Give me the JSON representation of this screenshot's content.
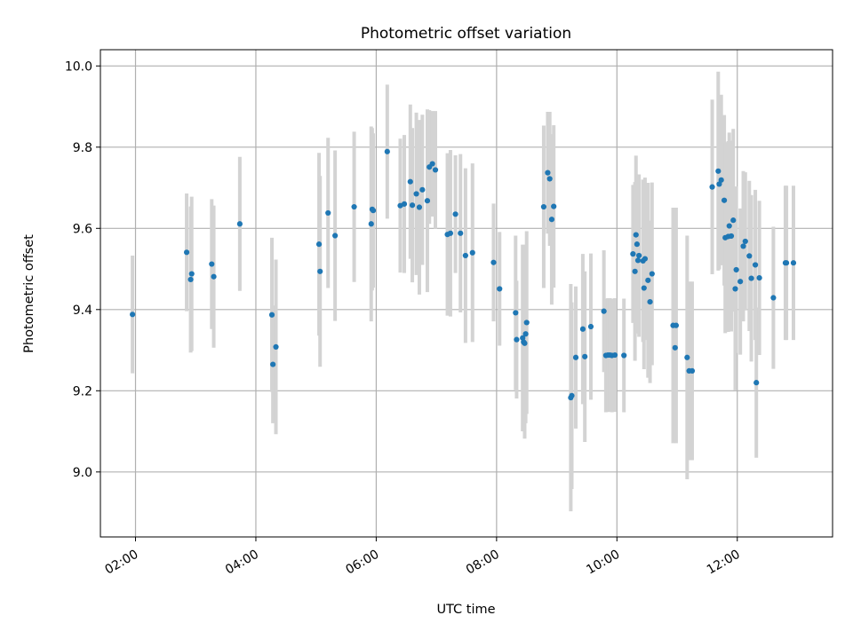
{
  "chart_data": {
    "type": "scatter",
    "title": "Photometric offset variation",
    "xlabel": "UTC time",
    "ylabel": "Photometric offset",
    "x_ticks": [
      "02:00",
      "04:00",
      "06:00",
      "08:00",
      "10:00",
      "12:00"
    ],
    "y_ticks": [
      "9.0",
      "9.2",
      "9.4",
      "9.6",
      "9.8",
      "10.0"
    ],
    "xlim": [
      "01:25",
      "13:35"
    ],
    "ylim": [
      8.84,
      10.04
    ],
    "grid": true,
    "legend": "none",
    "colors": {
      "points": "#1f77b4",
      "error_bars": "#d3d3d3",
      "grid": "#b0b0b0",
      "axes": "#000000"
    },
    "series": [
      {
        "x": [
          "01:57",
          "02:51",
          "02:55",
          "02:56",
          "03:16",
          "03:18",
          "03:44",
          "04:16",
          "04:17",
          "04:20",
          "05:03",
          "05:04",
          "05:12",
          "05:19",
          "05:38",
          "05:55",
          "05:56",
          "05:57",
          "06:11",
          "06:24",
          "06:28",
          "06:34",
          "06:36",
          "06:40",
          "06:43",
          "06:46",
          "06:51",
          "06:53",
          "06:56",
          "06:59",
          "07:11",
          "07:14",
          "07:19",
          "07:24",
          "07:29",
          "07:36",
          "07:57",
          "08:03",
          "08:19",
          "08:20",
          "08:26",
          "08:27",
          "08:28",
          "08:29",
          "08:30",
          "08:47",
          "08:51",
          "08:53",
          "08:55",
          "08:57",
          "09:14",
          "09:15",
          "09:19",
          "09:26",
          "09:28",
          "09:34",
          "09:47",
          "09:49",
          "09:51",
          "09:53",
          "09:55",
          "09:58",
          "10:07",
          "10:16",
          "10:18",
          "10:19",
          "10:20",
          "10:21",
          "10:22",
          "10:26",
          "10:27",
          "10:28",
          "10:31",
          "10:33",
          "10:35",
          "10:56",
          "10:58",
          "10:59",
          "11:10",
          "11:12",
          "11:15",
          "11:35",
          "11:41",
          "11:42",
          "11:44",
          "11:47",
          "11:48",
          "11:51",
          "11:52",
          "11:54",
          "11:56",
          "11:58",
          "11:59",
          "12:03",
          "12:06",
          "12:08",
          "12:12",
          "12:14",
          "12:18",
          "12:19",
          "12:22",
          "12:36",
          "12:48",
          "12:49",
          "12:56"
        ],
        "y": [
          9.388,
          9.541,
          9.474,
          9.488,
          9.512,
          9.481,
          9.611,
          9.387,
          9.265,
          9.308,
          9.561,
          9.494,
          9.638,
          9.582,
          9.653,
          9.611,
          9.647,
          9.644,
          9.789,
          9.656,
          9.66,
          9.715,
          9.657,
          9.685,
          9.652,
          9.695,
          9.668,
          9.751,
          9.759,
          9.744,
          9.585,
          9.588,
          9.635,
          9.588,
          9.533,
          9.54,
          9.516,
          9.451,
          9.392,
          9.326,
          9.33,
          9.32,
          9.317,
          9.34,
          9.368,
          9.653,
          9.737,
          9.722,
          9.622,
          9.654,
          9.183,
          9.188,
          9.282,
          9.352,
          9.284,
          9.358,
          9.396,
          9.287,
          9.288,
          9.288,
          9.287,
          9.288,
          9.287,
          9.537,
          9.494,
          9.584,
          9.561,
          9.521,
          9.533,
          9.52,
          9.453,
          9.525,
          9.472,
          9.419,
          9.488,
          9.361,
          9.306,
          9.361,
          9.282,
          9.249,
          9.249,
          9.702,
          9.741,
          9.709,
          9.719,
          9.669,
          9.577,
          9.58,
          9.606,
          9.581,
          9.62,
          9.451,
          9.498,
          9.469,
          9.556,
          9.568,
          9.532,
          9.477,
          9.51,
          9.22,
          9.478,
          9.429,
          9.515,
          9.515,
          9.515
        ],
        "yerr": [
          0.145,
          0.145,
          0.18,
          0.19,
          0.16,
          0.175,
          0.165,
          0.19,
          0.145,
          0.215,
          0.225,
          0.235,
          0.185,
          0.21,
          0.185,
          0.24,
          0.2,
          0.19,
          0.165,
          0.165,
          0.17,
          0.19,
          0.19,
          0.2,
          0.215,
          0.185,
          0.225,
          0.14,
          0.13,
          0.145,
          0.2,
          0.205,
          0.145,
          0.195,
          0.215,
          0.22,
          0.145,
          0.14,
          0.19,
          0.145,
          0.23,
          0.185,
          0.235,
          0.22,
          0.225,
          0.2,
          0.15,
          0.165,
          0.21,
          0.2,
          0.28,
          0.23,
          0.175,
          0.185,
          0.21,
          0.18,
          0.15,
          0.14,
          0.14,
          0.14,
          0.14,
          0.14,
          0.14,
          0.17,
          0.22,
          0.195,
          0.16,
          0.18,
          0.2,
          0.2,
          0.2,
          0.2,
          0.24,
          0.2,
          0.225,
          0.29,
          0.2,
          0.29,
          0.3,
          0.22,
          0.22,
          0.215,
          0.245,
          0.21,
          0.21,
          0.21,
          0.235,
          0.235,
          0.23,
          0.235,
          0.225,
          0.25,
          0.205,
          0.18,
          0.185,
          0.17,
          0.185,
          0.205,
          0.185,
          0.185,
          0.19,
          0.175,
          0.19,
          0.19,
          0.19
        ]
      }
    ]
  }
}
